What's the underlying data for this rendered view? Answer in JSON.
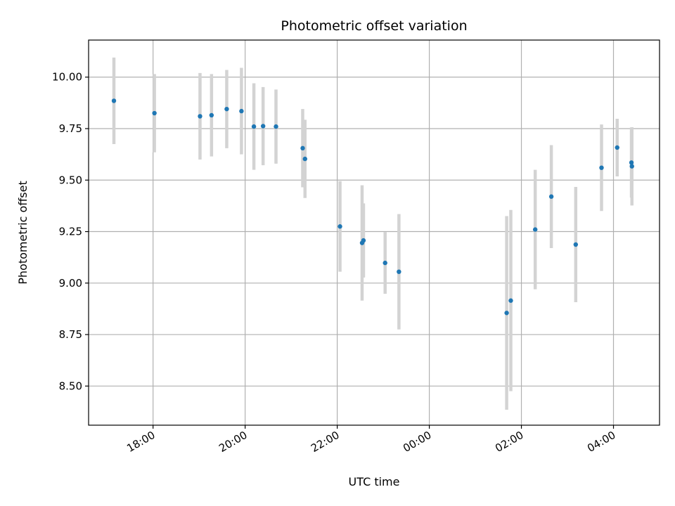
{
  "chart_data": {
    "type": "scatter",
    "title": "Photometric offset variation",
    "xlabel": "UTC time",
    "ylabel": "Photometric offset",
    "x_unit": "hours UTC on a continuous timeline (values above 24 are after midnight)",
    "xlim": [
      16.6,
      29.0
    ],
    "ylim": [
      8.31,
      10.18
    ],
    "x_ticks": [
      {
        "value": 18,
        "label": "18:00"
      },
      {
        "value": 20,
        "label": "20:00"
      },
      {
        "value": 22,
        "label": "22:00"
      },
      {
        "value": 24,
        "label": "00:00"
      },
      {
        "value": 26,
        "label": "02:00"
      },
      {
        "value": 28,
        "label": "04:00"
      }
    ],
    "y_ticks": [
      {
        "value": 8.5,
        "label": "8.50"
      },
      {
        "value": 8.75,
        "label": "8.75"
      },
      {
        "value": 9.0,
        "label": "9.00"
      },
      {
        "value": 9.25,
        "label": "9.25"
      },
      {
        "value": 9.5,
        "label": "9.50"
      },
      {
        "value": 9.75,
        "label": "9.75"
      },
      {
        "value": 10.0,
        "label": "10.00"
      }
    ],
    "grid": true,
    "colors": {
      "points": "#1f77b4",
      "errorbars": "#d3d3d3",
      "grid": "#b0b0b0"
    },
    "series": [
      {
        "points": [
          {
            "x": 17.15,
            "y": 9.885,
            "err": 0.21
          },
          {
            "x": 18.03,
            "y": 9.825,
            "err": 0.19
          },
          {
            "x": 19.02,
            "y": 9.81,
            "err": 0.21
          },
          {
            "x": 19.27,
            "y": 9.815,
            "err": 0.2
          },
          {
            "x": 19.6,
            "y": 9.845,
            "err": 0.19
          },
          {
            "x": 19.92,
            "y": 9.835,
            "err": 0.21
          },
          {
            "x": 20.19,
            "y": 9.76,
            "err": 0.21
          },
          {
            "x": 20.39,
            "y": 9.762,
            "err": 0.19
          },
          {
            "x": 20.67,
            "y": 9.76,
            "err": 0.18
          },
          {
            "x": 21.25,
            "y": 9.655,
            "err": 0.19
          },
          {
            "x": 21.3,
            "y": 9.603,
            "err": 0.19
          },
          {
            "x": 22.06,
            "y": 9.275,
            "err": 0.22
          },
          {
            "x": 22.54,
            "y": 9.195,
            "err": 0.28
          },
          {
            "x": 22.57,
            "y": 9.207,
            "err": 0.18
          },
          {
            "x": 23.04,
            "y": 9.098,
            "err": 0.15
          },
          {
            "x": 23.34,
            "y": 9.055,
            "err": 0.28
          },
          {
            "x": 25.68,
            "y": 8.855,
            "err": 0.47
          },
          {
            "x": 25.77,
            "y": 8.915,
            "err": 0.44
          },
          {
            "x": 26.3,
            "y": 9.26,
            "err": 0.29
          },
          {
            "x": 26.65,
            "y": 9.42,
            "err": 0.25
          },
          {
            "x": 27.18,
            "y": 9.187,
            "err": 0.28
          },
          {
            "x": 27.74,
            "y": 9.56,
            "err": 0.21
          },
          {
            "x": 28.08,
            "y": 9.658,
            "err": 0.14
          },
          {
            "x": 28.39,
            "y": 9.585,
            "err": 0.17
          },
          {
            "x": 28.4,
            "y": 9.567,
            "err": 0.19
          }
        ]
      }
    ]
  }
}
